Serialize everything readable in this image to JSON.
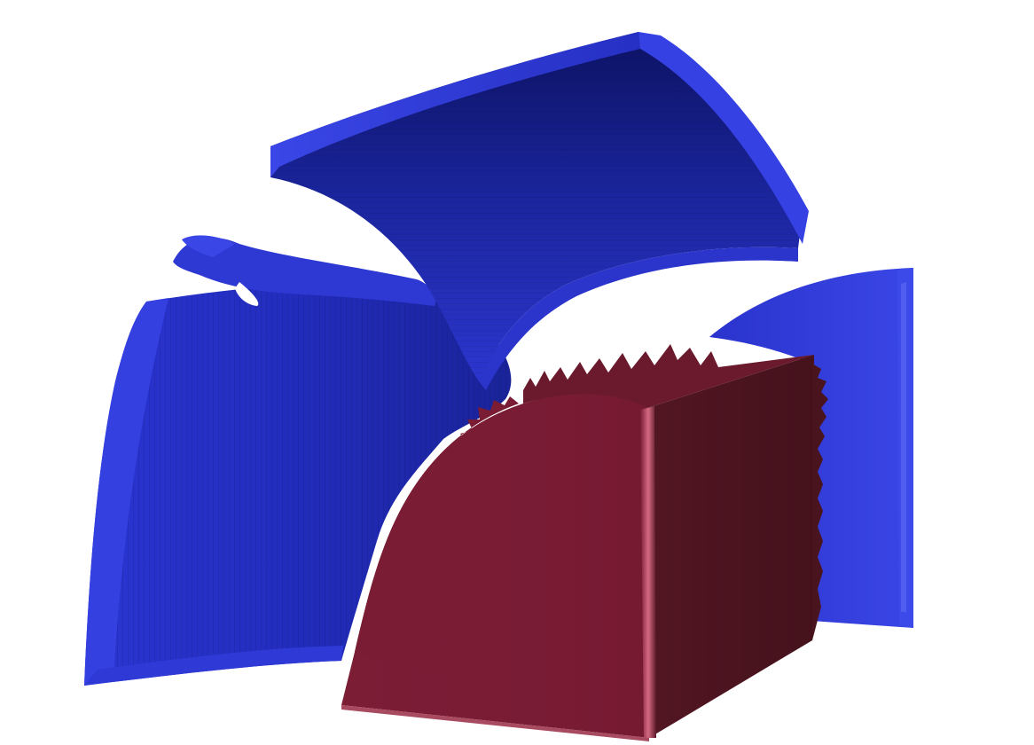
{
  "scene": {
    "background": "#ffffff",
    "colors": {
      "shell_light": "#3a47e8",
      "shell_mid": "#2a33cc",
      "shell_dark": "#121a78",
      "cube_front": "#7a1c34",
      "cube_side": "#4a141f",
      "cube_edge": "#c45a72"
    }
  }
}
